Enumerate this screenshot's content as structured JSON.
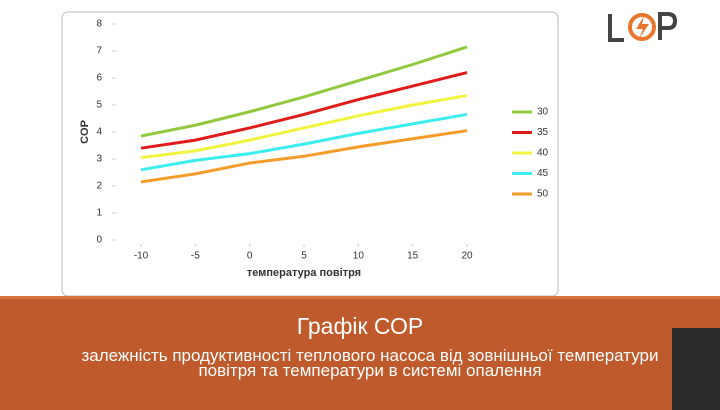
{
  "chart_data": {
    "type": "line",
    "x_label": "температура повітря",
    "y_label": "COP",
    "x": [
      -10,
      -5,
      0,
      5,
      10,
      15,
      20
    ],
    "series": [
      {
        "name": "30",
        "color": "#92c83e",
        "values": [
          3.85,
          4.25,
          4.75,
          5.3,
          5.9,
          6.5,
          7.15
        ]
      },
      {
        "name": "35",
        "color": "#e01b1b",
        "values": [
          3.4,
          3.7,
          4.15,
          4.65,
          5.2,
          5.7,
          6.2
        ]
      },
      {
        "name": "40",
        "color": "#f2f240",
        "values": [
          3.05,
          3.3,
          3.7,
          4.15,
          4.6,
          5.0,
          5.35
        ]
      },
      {
        "name": "45",
        "color": "#3ceded",
        "values": [
          2.6,
          2.95,
          3.2,
          3.55,
          3.95,
          4.3,
          4.65
        ]
      },
      {
        "name": "50",
        "color": "#f39c2a",
        "values": [
          2.15,
          2.45,
          2.85,
          3.1,
          3.45,
          3.75,
          4.05
        ]
      }
    ],
    "xlim": [
      -10,
      20
    ],
    "xticks": [
      -10,
      -5,
      0,
      5,
      10,
      15,
      20
    ],
    "ylim": [
      0,
      8
    ],
    "yticks": [
      0,
      1,
      2,
      3,
      4,
      5,
      6,
      7,
      8
    ],
    "legend": "right"
  },
  "slide": {
    "title": "Графік СОР",
    "subtitle": "залежність продуктивності теплового насоса від зовнішньої температури повітря та температури в системі опалення"
  }
}
